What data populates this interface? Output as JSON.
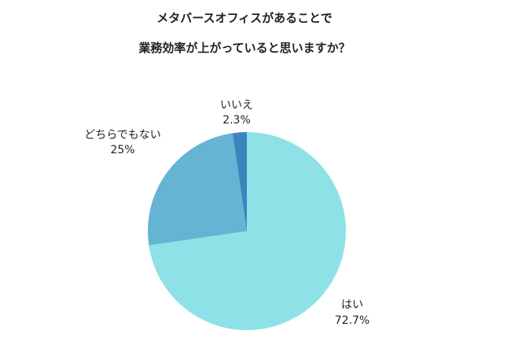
{
  "chart_data": {
    "type": "pie",
    "title_lines": [
      "メタバースオフィスがあることで",
      "業務効率が上がっていると思いますか？"
    ],
    "slices": [
      {
        "label": "はい",
        "value": 72.7,
        "display": "72.7%",
        "color": "#8ee2e7"
      },
      {
        "label": "どちらでもない",
        "value": 25,
        "display": "25%",
        "color": "#65b4d3"
      },
      {
        "label": "いいえ",
        "value": 2.3,
        "display": "2.3%",
        "color": "#3d84bc"
      }
    ]
  }
}
